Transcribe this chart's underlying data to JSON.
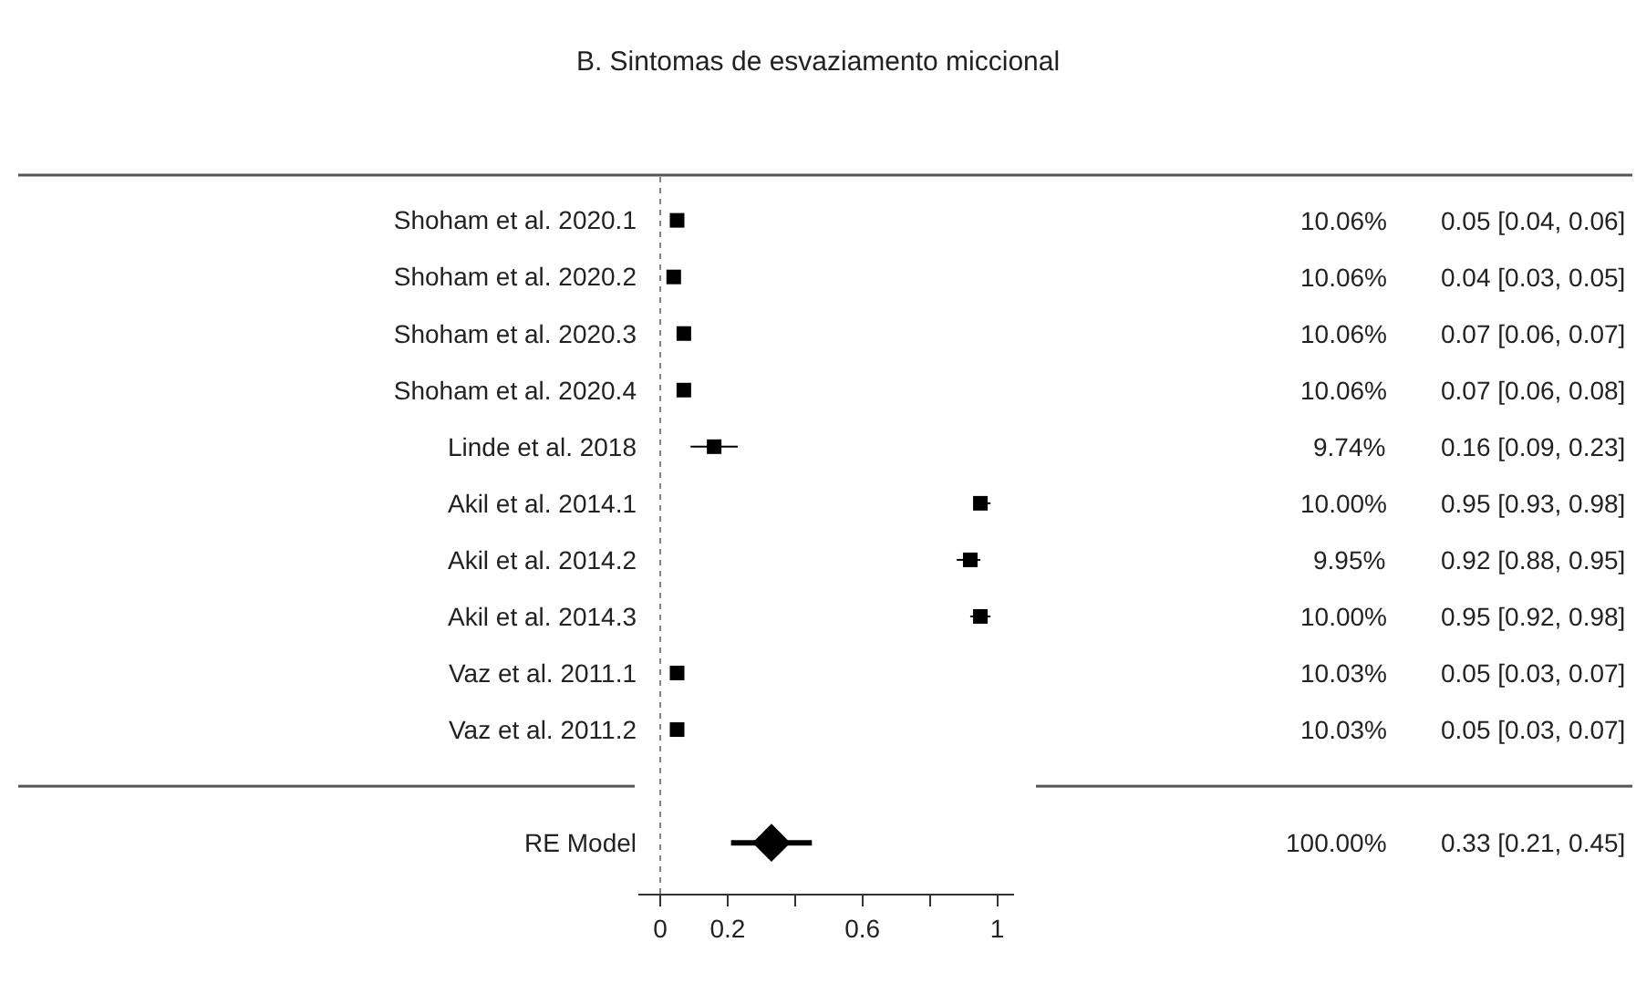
{
  "chart_data": {
    "type": "scatter",
    "orientation": "horizontal",
    "title": "B. Sintomas de esvaziamento miccional",
    "categories": [
      "Shoham et al. 2020.1",
      "Shoham et al. 2020.2",
      "Shoham et al. 2020.3",
      "Shoham et al. 2020.4",
      "Linde et al. 2018",
      "Akil et al. 2014.1",
      "Akil et al. 2014.2",
      "Akil et al. 2014.3",
      "Vaz et al. 2011.1",
      "Vaz et al. 2011.2",
      null,
      "RE Model"
    ],
    "series": [
      {
        "marker": "square",
        "color": "#000000",
        "values": [
          0.05,
          0.04,
          0.07,
          0.07,
          0.16,
          0.95,
          0.92,
          0.95,
          0.05,
          0.05,
          null,
          null
        ],
        "errors": [
          null,
          null,
          null,
          null,
          [
            0.09,
            0.23
          ],
          [
            0.93,
            0.98
          ],
          [
            0.88,
            0.95
          ],
          [
            0.92,
            0.98
          ],
          null,
          null,
          null,
          null
        ],
        "value_labels": [
          "0.05 [0.04, 0.06]",
          "0.04 [0.03, 0.05]",
          "0.07 [0.06, 0.07]",
          "0.07 [0.06, 0.08]",
          "0.16 [0.09, 0.23]",
          "0.95 [0.93, 0.98]",
          "0.92 [0.88, 0.95]",
          "0.95 [0.92, 0.98]",
          "0.05 [0.03, 0.07]",
          "0.05 [0.03, 0.07]",
          null,
          null
        ]
      },
      {
        "marker": "diamond",
        "color": "#000000",
        "values": [
          null,
          null,
          null,
          null,
          null,
          null,
          null,
          null,
          null,
          null,
          null,
          0.33
        ],
        "errors": [
          null,
          null,
          null,
          null,
          null,
          null,
          null,
          null,
          null,
          null,
          null,
          [
            0.21,
            0.45
          ]
        ]
      }
    ],
    "annotations": [
      "10.06%",
      "10.06%",
      "10.06%",
      "10.06%",
      "9.74%",
      "10.00%",
      "9.95%",
      "10.00%",
      "10.03%",
      "10.03%",
      "100.00%",
      "0.33 [0.21, 0.45]"
    ],
    "xlim": [
      -0.065,
      1.05
    ],
    "xticks": [
      0,
      0.2,
      {
        "value": 0.4,
        "label": null
      },
      0.6,
      {
        "value": 0.8,
        "label": null
      },
      1
    ],
    "ref_lines": [
      {
        "axis": "x",
        "value": 0,
        "line_style": "dotted",
        "color": "#808080"
      }
    ],
    "grid": false
  }
}
